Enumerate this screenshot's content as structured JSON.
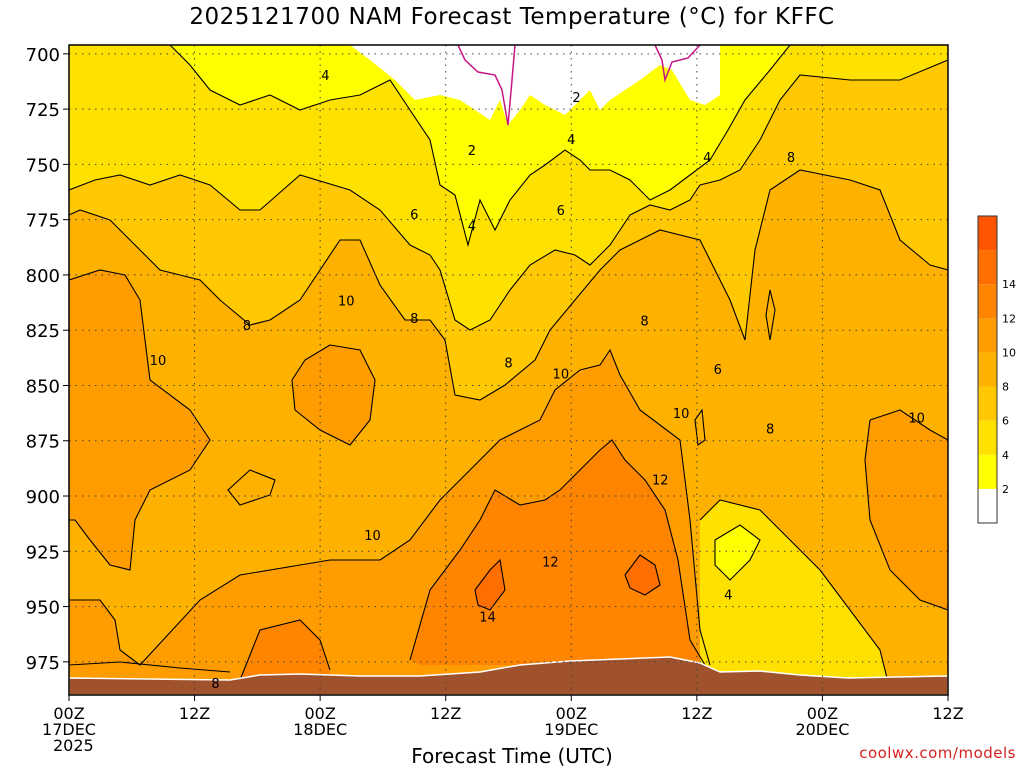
{
  "title": "2025121700 NAM Forecast Temperature (°C) for KFFC",
  "xlabel": "Forecast Time (UTC)",
  "credit": "coolwx.com/models",
  "chart_data": {
    "type": "heatmap",
    "title": "2025121700 NAM Forecast Temperature (°C) for KFFC",
    "xlabel": "Forecast Time (UTC)",
    "ylabel": "",
    "y_axis": {
      "ticks": [
        700,
        725,
        750,
        775,
        800,
        825,
        850,
        875,
        900,
        925,
        950,
        975
      ],
      "lim": [
        696,
        990
      ],
      "reversed": true
    },
    "x_axis": {
      "ticks": [
        {
          "label": [
            "00Z",
            "17DEC",
            "2025"
          ]
        },
        {
          "label": [
            "12Z"
          ]
        },
        {
          "label": [
            "00Z",
            "18DEC"
          ]
        },
        {
          "label": [
            "12Z"
          ]
        },
        {
          "label": [
            "00Z",
            "19DEC"
          ]
        },
        {
          "label": [
            "12Z"
          ]
        },
        {
          "label": [
            "00Z",
            "20DEC"
          ]
        },
        {
          "label": [
            "12Z"
          ]
        }
      ],
      "lim_hours": [
        0,
        84
      ]
    },
    "grid": true,
    "colorbar": {
      "placement": "right",
      "levels": [
        0,
        2,
        4,
        6,
        8,
        10,
        12,
        14,
        16
      ],
      "labels": [
        "2",
        "4",
        "6",
        "8",
        "10",
        "12",
        "14"
      ],
      "colors": [
        "#ffffff",
        "#ffff00",
        "#ffe100",
        "#ffc800",
        "#ffb100",
        "#ff9c00",
        "#ff8400",
        "#ff6e00",
        "#ff5500"
      ]
    },
    "contour_labels": [
      {
        "text": "4",
        "hour": 24.5,
        "p": 710
      },
      {
        "text": "2",
        "hour": 38.5,
        "p": 744
      },
      {
        "text": "4",
        "hour": 38.5,
        "p": 778
      },
      {
        "text": "2",
        "hour": 48.5,
        "p": 720
      },
      {
        "text": "4",
        "hour": 48,
        "p": 739
      },
      {
        "text": "4",
        "hour": 61,
        "p": 747
      },
      {
        "text": "6",
        "hour": 33,
        "p": 773
      },
      {
        "text": "6",
        "hour": 47,
        "p": 771
      },
      {
        "text": "8",
        "hour": 69,
        "p": 747
      },
      {
        "text": "8",
        "hour": 17,
        "p": 823
      },
      {
        "text": "8",
        "hour": 33,
        "p": 820
      },
      {
        "text": "8",
        "hour": 42,
        "p": 840
      },
      {
        "text": "8",
        "hour": 55,
        "p": 821
      },
      {
        "text": "8",
        "hour": 67,
        "p": 870
      },
      {
        "text": "6",
        "hour": 62,
        "p": 843
      },
      {
        "text": "10",
        "hour": 26.5,
        "p": 812
      },
      {
        "text": "10",
        "hour": 8.5,
        "p": 839
      },
      {
        "text": "10",
        "hour": 47,
        "p": 845
      },
      {
        "text": "10",
        "hour": 58.5,
        "p": 863
      },
      {
        "text": "10",
        "hour": 81,
        "p": 865
      },
      {
        "text": "10",
        "hour": 29,
        "p": 918
      },
      {
        "text": "12",
        "hour": 56.5,
        "p": 893
      },
      {
        "text": "12",
        "hour": 46,
        "p": 930
      },
      {
        "text": "14",
        "hour": 40,
        "p": 955
      },
      {
        "text": "4",
        "hour": 63,
        "p": 945
      },
      {
        "text": "8",
        "hour": 14,
        "p": 985
      }
    ],
    "below_ground_color": "#a0522d",
    "freezing_contour_color": "#c71585"
  }
}
